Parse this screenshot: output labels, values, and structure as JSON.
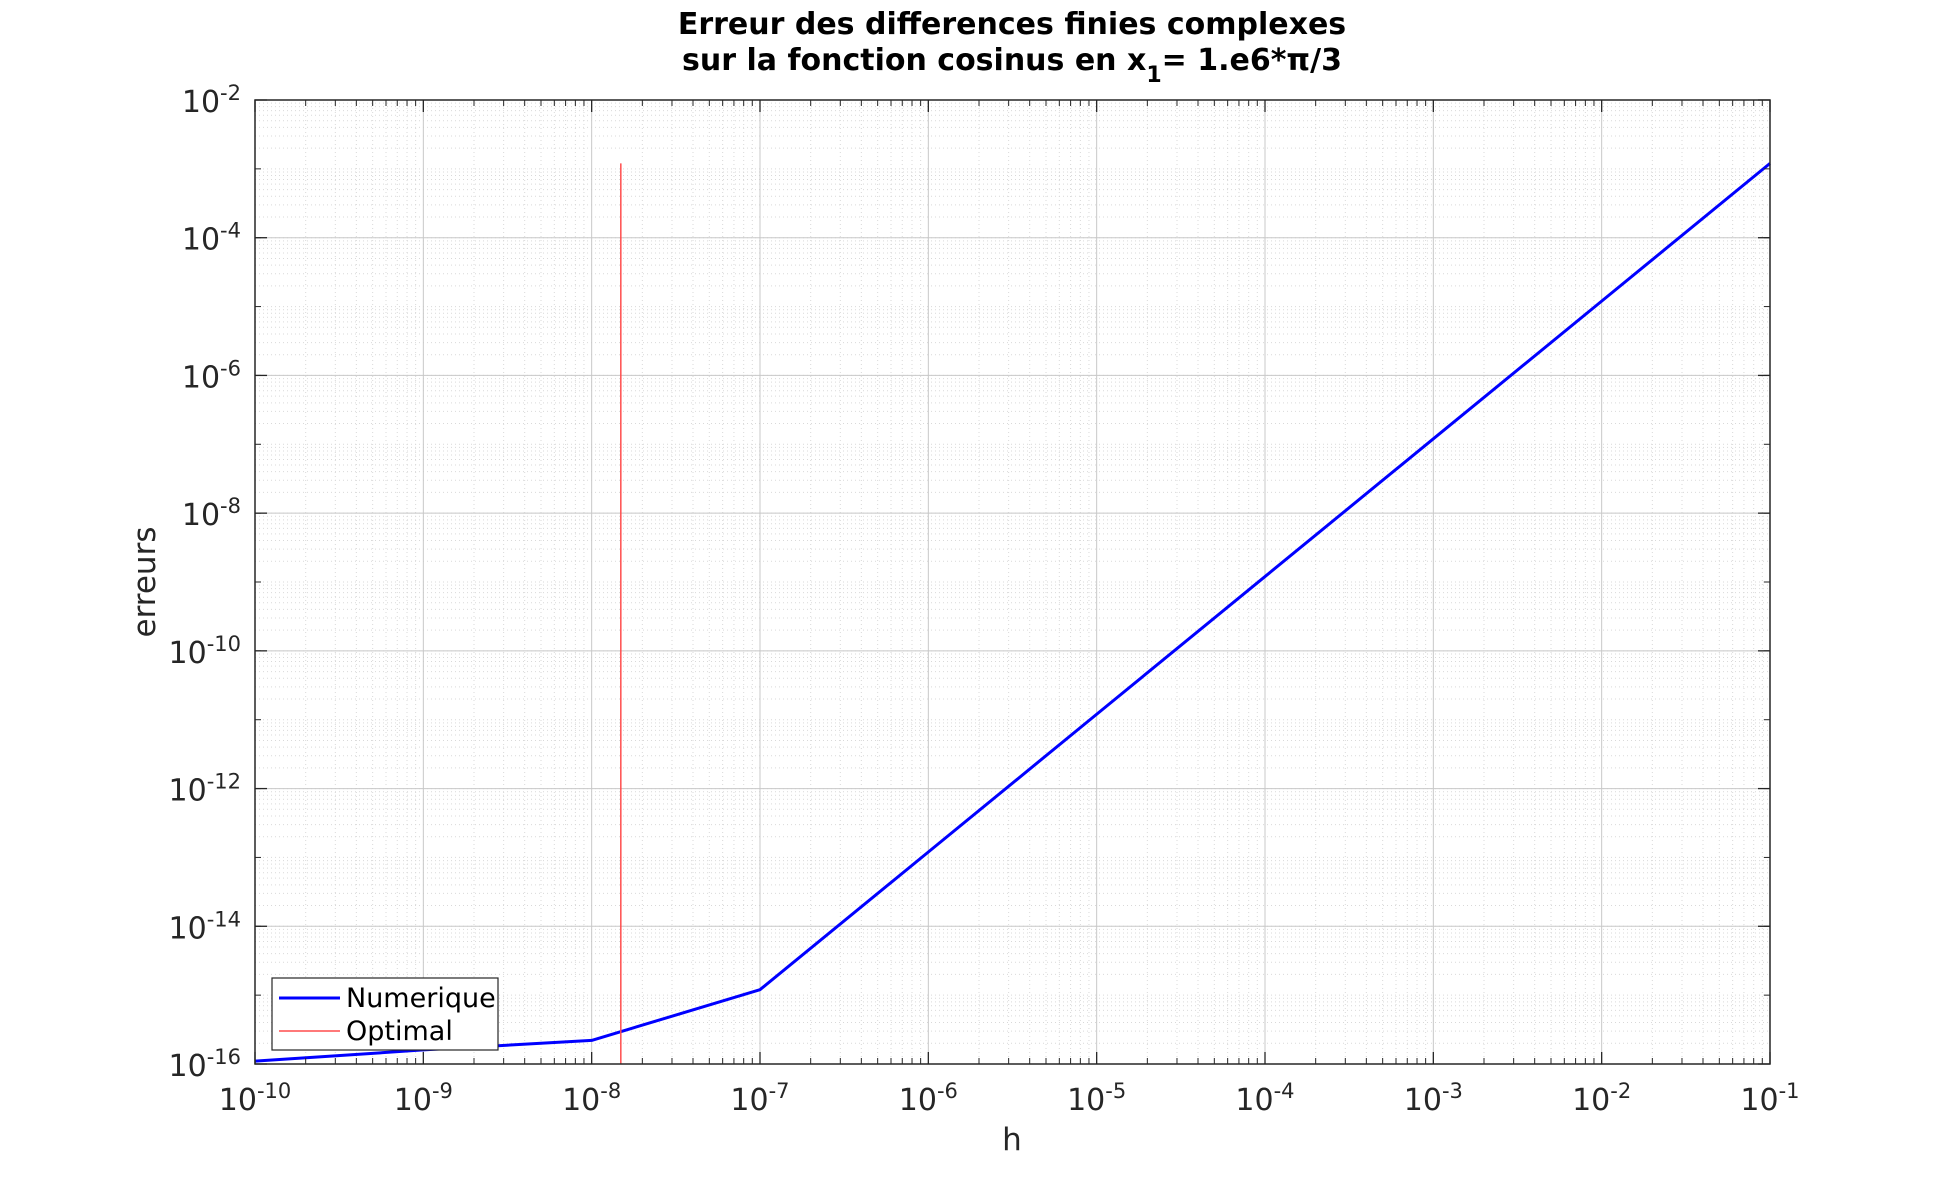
{
  "chart_data": {
    "type": "line",
    "title_line1": "Erreur des differences finies complexes",
    "title_line2_prefix": "sur la fonction cosinus en x",
    "title_line2_sub": "1",
    "title_line2_suffix": "= 1.e6*π/3",
    "xlabel": "h",
    "ylabel": "erreurs",
    "x_scale": "log",
    "y_scale": "log",
    "xlim": [
      1e-10,
      0.1
    ],
    "ylim": [
      1e-16,
      0.01
    ],
    "grid": true,
    "minor_grid": true,
    "legend_position": "bottom-left",
    "x_ticks": [
      {
        "base": "10",
        "exp": "-10",
        "value": 1e-10
      },
      {
        "base": "10",
        "exp": "-9",
        "value": 1e-09
      },
      {
        "base": "10",
        "exp": "-8",
        "value": 1e-08
      },
      {
        "base": "10",
        "exp": "-7",
        "value": 1e-07
      },
      {
        "base": "10",
        "exp": "-6",
        "value": 1e-06
      },
      {
        "base": "10",
        "exp": "-5",
        "value": 1e-05
      },
      {
        "base": "10",
        "exp": "-4",
        "value": 0.0001
      },
      {
        "base": "10",
        "exp": "-3",
        "value": 0.001
      },
      {
        "base": "10",
        "exp": "-2",
        "value": 0.01
      },
      {
        "base": "10",
        "exp": "-1",
        "value": 0.1
      }
    ],
    "y_ticks": [
      {
        "base": "10",
        "exp": "-2",
        "value": 0.01
      },
      {
        "base": "10",
        "exp": "-4",
        "value": 0.0001
      },
      {
        "base": "10",
        "exp": "-6",
        "value": 1e-06
      },
      {
        "base": "10",
        "exp": "-8",
        "value": 1e-08
      },
      {
        "base": "10",
        "exp": "-10",
        "value": 1e-10
      },
      {
        "base": "10",
        "exp": "-12",
        "value": 1e-12
      },
      {
        "base": "10",
        "exp": "-14",
        "value": 1e-14
      },
      {
        "base": "10",
        "exp": "-16",
        "value": 1e-16
      }
    ],
    "series": [
      {
        "name": "Numerique",
        "color": "#0000ff",
        "style": "solid",
        "x": [
          1e-10,
          1e-09,
          1e-08,
          1e-07,
          1e-06,
          1e-05,
          0.0001,
          0.001,
          0.01,
          0.1
        ],
        "y": [
          1.1e-16,
          1.6e-16,
          2.2e-16,
          1.2e-15,
          1.2e-13,
          1.2e-11,
          1.2e-09,
          1.2e-07,
          1.2e-05,
          0.0012
        ]
      },
      {
        "name": "Optimal",
        "color": "#ff4d4d",
        "style": "solid",
        "x": [
          1.49e-08,
          1.49e-08
        ],
        "y": [
          1e-16,
          0.0012
        ]
      }
    ]
  }
}
